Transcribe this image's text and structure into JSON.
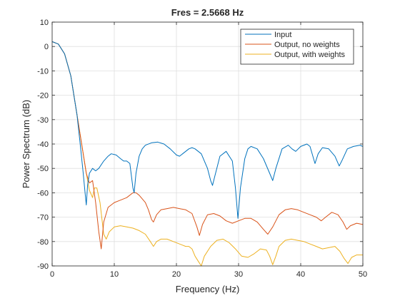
{
  "chart_data": {
    "type": "line",
    "title": "Fres = 2.5668 Hz",
    "xlabel": "Frequency (Hz)",
    "ylabel": "Power Spectrum (dB)",
    "xlim": [
      0,
      50
    ],
    "ylim": [
      -90,
      10
    ],
    "xticks": [
      0,
      10,
      20,
      30,
      40,
      50
    ],
    "yticks": [
      10,
      0,
      -10,
      -20,
      -30,
      -40,
      -50,
      -60,
      -70,
      -80,
      -90
    ],
    "grid": true,
    "legend_position": "top-right",
    "series": [
      {
        "name": "Input",
        "color": "#0072BD",
        "points": [
          [
            0,
            2
          ],
          [
            1,
            1
          ],
          [
            2,
            -3
          ],
          [
            3,
            -12
          ],
          [
            4,
            -28
          ],
          [
            4.6,
            -42
          ],
          [
            5,
            -52
          ],
          [
            5.3,
            -60
          ],
          [
            5.5,
            -65
          ],
          [
            5.7,
            -57
          ],
          [
            6,
            -52
          ],
          [
            6.5,
            -50
          ],
          [
            7,
            -51
          ],
          [
            7.5,
            -50
          ],
          [
            8.3,
            -47
          ],
          [
            9,
            -45
          ],
          [
            9.5,
            -44
          ],
          [
            10.3,
            -44.5
          ],
          [
            11,
            -46
          ],
          [
            11.5,
            -47
          ],
          [
            12,
            -47
          ],
          [
            12.5,
            -48
          ],
          [
            13,
            -58
          ],
          [
            13.2,
            -60
          ],
          [
            13.5,
            -52
          ],
          [
            14,
            -45
          ],
          [
            14.5,
            -42
          ],
          [
            15,
            -40.5
          ],
          [
            16,
            -39.5
          ],
          [
            17,
            -39.2
          ],
          [
            18,
            -40
          ],
          [
            19,
            -42
          ],
          [
            20,
            -44.5
          ],
          [
            20.5,
            -45
          ],
          [
            21,
            -44
          ],
          [
            22,
            -42
          ],
          [
            22.5,
            -41.5
          ],
          [
            23,
            -42
          ],
          [
            24,
            -44
          ],
          [
            25,
            -50
          ],
          [
            25.5,
            -55
          ],
          [
            25.8,
            -57
          ],
          [
            26.2,
            -53
          ],
          [
            27,
            -45
          ],
          [
            28,
            -43
          ],
          [
            29,
            -47
          ],
          [
            29.5,
            -58
          ],
          [
            29.9,
            -70.5
          ],
          [
            30.3,
            -58
          ],
          [
            31,
            -46
          ],
          [
            31.5,
            -42
          ],
          [
            32,
            -41
          ],
          [
            33,
            -42
          ],
          [
            34,
            -46
          ],
          [
            35,
            -52
          ],
          [
            35.5,
            -55
          ],
          [
            36,
            -50
          ],
          [
            37,
            -42
          ],
          [
            38,
            -40.5
          ],
          [
            38.6,
            -42
          ],
          [
            39.2,
            -43
          ],
          [
            40,
            -41
          ],
          [
            41,
            -40
          ],
          [
            41.5,
            -41
          ],
          [
            42.3,
            -48
          ],
          [
            42.8,
            -44
          ],
          [
            43.5,
            -41.5
          ],
          [
            44.5,
            -42
          ],
          [
            45.5,
            -45
          ],
          [
            46.2,
            -49
          ],
          [
            46.6,
            -47
          ],
          [
            47.5,
            -42
          ],
          [
            48.5,
            -41
          ],
          [
            49.5,
            -40.5
          ],
          [
            50,
            -41
          ]
        ]
      },
      {
        "name": "Output, no weights",
        "color": "#D95319",
        "points": [
          [
            0,
            2
          ],
          [
            1,
            1
          ],
          [
            2,
            -3
          ],
          [
            3,
            -12
          ],
          [
            4,
            -28
          ],
          [
            5,
            -44
          ],
          [
            5.5,
            -52
          ],
          [
            6,
            -56
          ],
          [
            6.5,
            -55
          ],
          [
            7,
            -64
          ],
          [
            7.5,
            -76
          ],
          [
            7.9,
            -83
          ],
          [
            8.3,
            -72
          ],
          [
            9,
            -66
          ],
          [
            10,
            -64
          ],
          [
            11,
            -63
          ],
          [
            12,
            -62
          ],
          [
            13,
            -60
          ],
          [
            13.5,
            -60
          ],
          [
            14,
            -61
          ],
          [
            15,
            -64
          ],
          [
            15.5,
            -67
          ],
          [
            16,
            -71
          ],
          [
            16.3,
            -72
          ],
          [
            16.8,
            -69
          ],
          [
            17.5,
            -67
          ],
          [
            18.5,
            -66.5
          ],
          [
            19.5,
            -66
          ],
          [
            20.5,
            -66.5
          ],
          [
            21.5,
            -67
          ],
          [
            22.5,
            -68.5
          ],
          [
            23.3,
            -74
          ],
          [
            23.7,
            -77.5
          ],
          [
            24.2,
            -73
          ],
          [
            25,
            -69
          ],
          [
            26,
            -68.5
          ],
          [
            27,
            -69.5
          ],
          [
            28,
            -71.5
          ],
          [
            29,
            -72.5
          ],
          [
            30,
            -71.5
          ],
          [
            31,
            -70.5
          ],
          [
            32,
            -70.5
          ],
          [
            33,
            -72
          ],
          [
            34,
            -75
          ],
          [
            34.7,
            -77
          ],
          [
            35.5,
            -74
          ],
          [
            36.5,
            -69
          ],
          [
            37.5,
            -67
          ],
          [
            38.5,
            -66.5
          ],
          [
            39.5,
            -67
          ],
          [
            40.5,
            -68
          ],
          [
            41.5,
            -69
          ],
          [
            42.5,
            -70
          ],
          [
            43.3,
            -71.5
          ],
          [
            44,
            -70
          ],
          [
            45,
            -68
          ],
          [
            46,
            -69
          ],
          [
            46.8,
            -72
          ],
          [
            47.4,
            -75
          ],
          [
            48,
            -73.5
          ],
          [
            49,
            -72.5
          ],
          [
            50,
            -73
          ]
        ]
      },
      {
        "name": "Output, with weights",
        "color": "#EDB120",
        "points": [
          [
            0,
            2
          ],
          [
            1,
            1
          ],
          [
            2,
            -3
          ],
          [
            3,
            -12
          ],
          [
            4,
            -28
          ],
          [
            5,
            -44
          ],
          [
            5.5,
            -52
          ],
          [
            6,
            -59
          ],
          [
            6.5,
            -62
          ],
          [
            6.8,
            -58
          ],
          [
            7.2,
            -58
          ],
          [
            7.7,
            -64
          ],
          [
            8.3,
            -77
          ],
          [
            8.7,
            -79
          ],
          [
            9.2,
            -76
          ],
          [
            10,
            -74
          ],
          [
            11,
            -73.5
          ],
          [
            12,
            -74
          ],
          [
            13,
            -74.5
          ],
          [
            14,
            -75.5
          ],
          [
            15,
            -77
          ],
          [
            15.8,
            -80
          ],
          [
            16.3,
            -82
          ],
          [
            16.8,
            -80
          ],
          [
            17.5,
            -79
          ],
          [
            18.5,
            -79
          ],
          [
            19.5,
            -80
          ],
          [
            20.5,
            -81
          ],
          [
            21.5,
            -82
          ],
          [
            22,
            -82
          ],
          [
            22.5,
            -83
          ],
          [
            23,
            -86
          ],
          [
            23.5,
            -88
          ],
          [
            24,
            -90
          ],
          [
            24.5,
            -86
          ],
          [
            25.5,
            -82
          ],
          [
            26.5,
            -79.5
          ],
          [
            27.5,
            -79
          ],
          [
            28.5,
            -80.5
          ],
          [
            29.5,
            -83
          ],
          [
            30.5,
            -86
          ],
          [
            31.5,
            -86.5
          ],
          [
            32.5,
            -85
          ],
          [
            33.5,
            -83
          ],
          [
            34.5,
            -83.5
          ],
          [
            35,
            -86
          ],
          [
            35.5,
            -89.5
          ],
          [
            36,
            -86
          ],
          [
            36.5,
            -82
          ],
          [
            37.5,
            -79.5
          ],
          [
            38.5,
            -79
          ],
          [
            39.5,
            -79.5
          ],
          [
            40.5,
            -80
          ],
          [
            41.5,
            -81
          ],
          [
            42.5,
            -82
          ],
          [
            43.5,
            -83
          ],
          [
            44.5,
            -82.5
          ],
          [
            45.5,
            -82
          ],
          [
            46.3,
            -84
          ],
          [
            47,
            -87
          ],
          [
            47.6,
            -89
          ],
          [
            48.2,
            -86.5
          ],
          [
            49,
            -85.5
          ],
          [
            50,
            -85.5
          ]
        ]
      }
    ]
  }
}
